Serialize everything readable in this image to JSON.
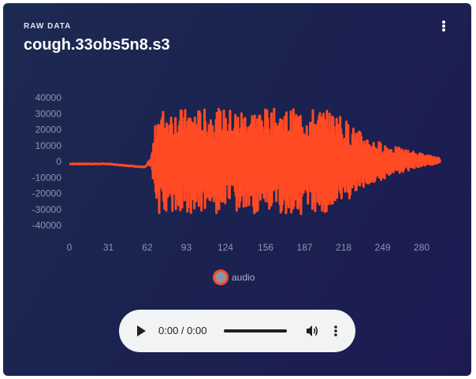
{
  "header": {
    "section_label": "RAW DATA",
    "title": "cough.33obs5n8.s3"
  },
  "icons": {
    "menu": "vertical-dots-icon",
    "play": "play-icon",
    "volume": "volume-icon",
    "player_menu": "vertical-dots-icon"
  },
  "colors": {
    "card_background": "#1b2150",
    "series": "#ff4a24",
    "legend_fill": "#8c93ab",
    "axis_text": "#8e95b0",
    "player_background": "#f1f3f4"
  },
  "chart_data": {
    "type": "line",
    "title": "",
    "xlabel": "",
    "ylabel": "",
    "x_ticks": [
      "0",
      "31",
      "62",
      "93",
      "124",
      "156",
      "187",
      "218",
      "249",
      "280"
    ],
    "y_ticks": [
      "40000",
      "30000",
      "20000",
      "10000",
      "0",
      "-10000",
      "-20000",
      "-30000",
      "-40000"
    ],
    "xlim": [
      0,
      295
    ],
    "ylim": [
      -40000,
      40000
    ],
    "grid": false,
    "legend_position": "bottom",
    "series": [
      {
        "name": "audio",
        "color": "#ff4a24",
        "envelope": [
          {
            "x": 0,
            "min": -2000,
            "max": -1000
          },
          {
            "x": 31,
            "min": -2000,
            "max": -1000
          },
          {
            "x": 45,
            "min": -3000,
            "max": -2000
          },
          {
            "x": 60,
            "min": -4000,
            "max": -3000
          },
          {
            "x": 65,
            "min": -2000,
            "max": 2000
          },
          {
            "x": 70,
            "min": -33000,
            "max": 33000
          },
          {
            "x": 200,
            "min": -33000,
            "max": 33000
          },
          {
            "x": 215,
            "min": -28000,
            "max": 30000
          },
          {
            "x": 225,
            "min": -22000,
            "max": 22000
          },
          {
            "x": 240,
            "min": -14000,
            "max": 14000
          },
          {
            "x": 260,
            "min": -8000,
            "max": 9000
          },
          {
            "x": 280,
            "min": -3000,
            "max": 5000
          },
          {
            "x": 295,
            "min": -1000,
            "max": 2000
          }
        ]
      }
    ]
  },
  "legend": {
    "label": "audio"
  },
  "player": {
    "time": "0:00 / 0:00"
  }
}
